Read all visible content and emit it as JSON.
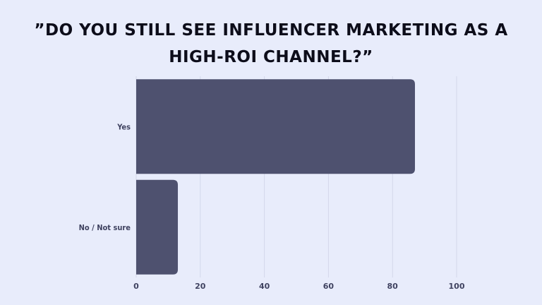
{
  "chart_data": {
    "type": "bar",
    "orientation": "horizontal",
    "title": "”Do you still see influencer marketing as a high-ROI channel?”",
    "categories": [
      "Yes",
      "No / Not sure"
    ],
    "values": [
      87,
      13
    ],
    "xlim": [
      0,
      100
    ],
    "xticks": [
      0,
      20,
      40,
      60,
      80,
      100
    ],
    "grid": true,
    "bar_color": "#4e516f",
    "grid_color": "#d3d7ea"
  }
}
